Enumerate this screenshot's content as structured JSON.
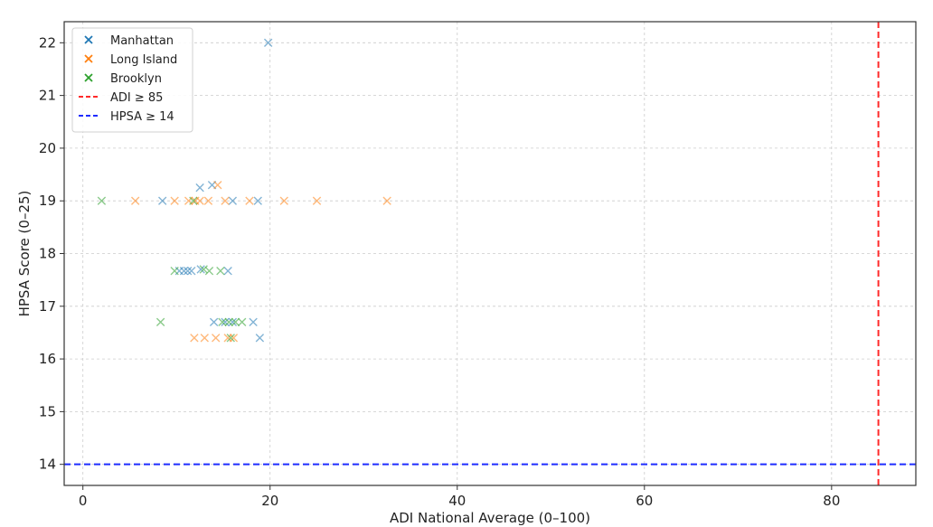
{
  "chart_data": {
    "type": "scatter",
    "title": "",
    "xlabel": "ADI National Average (0–100)",
    "ylabel": "HPSA Score (0–25)",
    "xlim": [
      -2,
      89
    ],
    "ylim": [
      13.6,
      22.4
    ],
    "xticks": [
      "0",
      "20",
      "40",
      "60",
      "80"
    ],
    "xtick_values": [
      0,
      20,
      40,
      60,
      80
    ],
    "yticks": [
      "14",
      "15",
      "16",
      "17",
      "18",
      "19",
      "20",
      "21",
      "22"
    ],
    "ytick_values": [
      14,
      15,
      16,
      17,
      18,
      19,
      20,
      21,
      22
    ],
    "grid": true,
    "legend_position": "top-left",
    "marker": "x",
    "series": [
      {
        "name": "Manhattan",
        "color": "#1f77b4",
        "points": [
          [
            19.8,
            22.0
          ],
          [
            12.5,
            19.25
          ],
          [
            13.8,
            19.3
          ],
          [
            8.5,
            19.0
          ],
          [
            16.0,
            19.0
          ],
          [
            18.7,
            19.0
          ],
          [
            10.3,
            17.67
          ],
          [
            10.8,
            17.67
          ],
          [
            11.2,
            17.67
          ],
          [
            11.6,
            17.67
          ],
          [
            12.6,
            17.7
          ],
          [
            15.5,
            17.67
          ],
          [
            14.0,
            16.7
          ],
          [
            15.2,
            16.7
          ],
          [
            18.2,
            16.7
          ],
          [
            16.0,
            16.7
          ],
          [
            18.9,
            16.4
          ]
        ]
      },
      {
        "name": "Long Island",
        "color": "#ff7f0e",
        "points": [
          [
            5.6,
            19.0
          ],
          [
            9.8,
            19.0
          ],
          [
            11.3,
            19.0
          ],
          [
            12.0,
            19.0
          ],
          [
            12.5,
            19.0
          ],
          [
            13.4,
            19.0
          ],
          [
            15.2,
            19.0
          ],
          [
            17.8,
            19.0
          ],
          [
            21.5,
            19.0
          ],
          [
            25.0,
            19.0
          ],
          [
            32.5,
            19.0
          ],
          [
            14.4,
            19.3
          ],
          [
            11.9,
            16.4
          ],
          [
            13.0,
            16.4
          ],
          [
            14.2,
            16.4
          ],
          [
            15.5,
            16.4
          ],
          [
            16.1,
            16.4
          ]
        ]
      },
      {
        "name": "Brooklyn",
        "color": "#2ca02c",
        "points": [
          [
            2.0,
            19.0
          ],
          [
            11.8,
            19.0
          ],
          [
            9.8,
            17.67
          ],
          [
            12.9,
            17.7
          ],
          [
            13.5,
            17.67
          ],
          [
            14.7,
            17.67
          ],
          [
            8.3,
            16.7
          ],
          [
            14.9,
            16.7
          ],
          [
            15.6,
            16.7
          ],
          [
            16.3,
            16.7
          ],
          [
            17.0,
            16.7
          ],
          [
            15.8,
            16.4
          ]
        ]
      }
    ],
    "reference_lines": [
      {
        "name": "ADI ≥ 85",
        "orientation": "vertical",
        "value": 85,
        "color": "#ff2a2a"
      },
      {
        "name": "HPSA ≥ 14",
        "orientation": "horizontal",
        "value": 14,
        "color": "#1f2cff"
      }
    ]
  }
}
